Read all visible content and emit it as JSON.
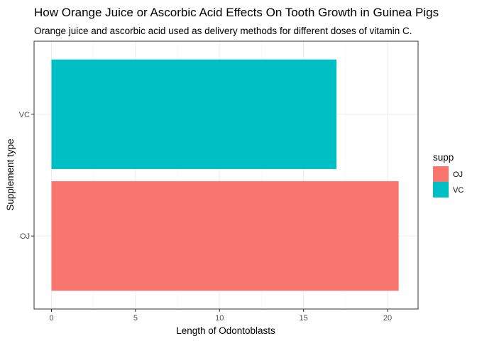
{
  "chart_data": {
    "type": "bar",
    "orientation": "horizontal",
    "title": "How Orange Juice or Ascorbic Acid Effects On Tooth Growth in Guinea Pigs",
    "subtitle": "Orange juice and ascorbic acid used as delivery methods for different doses of vitamin C.",
    "xlabel": "Length of Odontoblasts",
    "ylabel": "Supplement type",
    "categories": [
      "OJ",
      "VC"
    ],
    "values": [
      20.66,
      16.96
    ],
    "colors": [
      "#F8766D",
      "#00BFC4"
    ],
    "xlim": [
      0,
      21.7
    ],
    "xticks": [
      0,
      5,
      10,
      15,
      20
    ],
    "grid": true,
    "legend": {
      "title": "supp",
      "position": "right",
      "entries": [
        {
          "label": "OJ",
          "color": "#F8766D"
        },
        {
          "label": "VC",
          "color": "#00BFC4"
        }
      ]
    }
  }
}
